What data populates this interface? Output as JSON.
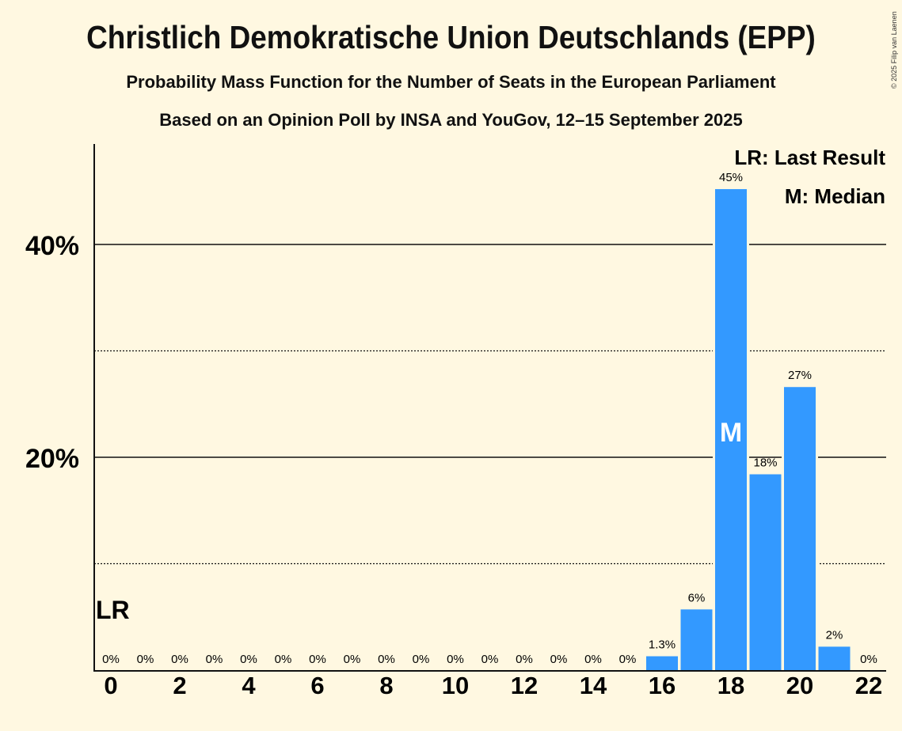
{
  "title": "Christlich Demokratische Union Deutschlands (EPP)",
  "subtitle1": "Probability Mass Function for the Number of Seats in the European Parliament",
  "subtitle2": "Based on an Opinion Poll by INSA and YouGov, 12–15 September 2025",
  "copyright": "© 2025 Filip van Laenen",
  "legend": {
    "lr": "LR: Last Result",
    "m": "M: Median"
  },
  "colors": {
    "bar": "#3399FF",
    "background": "#FFF8E1"
  },
  "chart_data": {
    "type": "bar",
    "x": [
      0,
      1,
      2,
      3,
      4,
      5,
      6,
      7,
      8,
      9,
      10,
      11,
      12,
      13,
      14,
      15,
      16,
      17,
      18,
      19,
      20,
      21,
      22
    ],
    "values": [
      0,
      0,
      0,
      0,
      0,
      0,
      0,
      0,
      0,
      0,
      0,
      0,
      0,
      0,
      0,
      0,
      1.3,
      5.7,
      45.2,
      18.4,
      26.6,
      2.2,
      0
    ],
    "labels": [
      "0%",
      "0%",
      "0%",
      "0%",
      "0%",
      "0%",
      "0%",
      "0%",
      "0%",
      "0%",
      "0%",
      "0%",
      "0%",
      "0%",
      "0%",
      "0%",
      "1.3%",
      "6%",
      "45%",
      "18%",
      "27%",
      "2%",
      "0%"
    ],
    "xticks": [
      "0",
      "2",
      "4",
      "6",
      "8",
      "10",
      "12",
      "14",
      "16",
      "18",
      "20",
      "22"
    ],
    "yticks": [
      {
        "value": 20,
        "label": "20%"
      },
      {
        "value": 40,
        "label": "40%"
      }
    ],
    "minor_gridlines": [
      10,
      30
    ],
    "ylim": [
      0,
      49
    ],
    "last_result": {
      "x": 0,
      "label": "LR"
    },
    "median": {
      "x": 18,
      "label": "M"
    },
    "xlabel": "",
    "ylabel": ""
  }
}
